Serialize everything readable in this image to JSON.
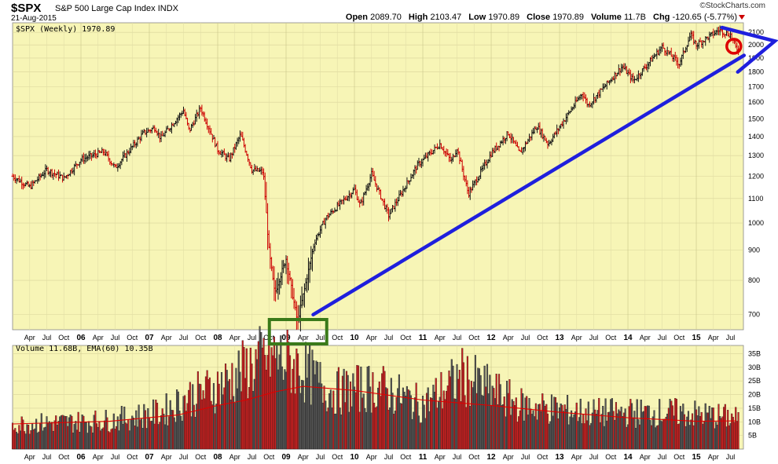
{
  "header": {
    "symbol": "$SPX",
    "description": "S&P 500 Large Cap Index",
    "exchange": "INDX",
    "date": "21-Aug-2015",
    "brand": "©StockCharts.com",
    "open_label": "Open",
    "open": "2089.70",
    "high_label": "High",
    "high": "2103.47",
    "low_label": "Low",
    "low": "1970.89",
    "close_label": "Close",
    "close": "1970.89",
    "volume_label": "Volume",
    "volume": "11.7B",
    "chg_label": "Chg",
    "chg": "-120.65 (-5.77%)"
  },
  "colors": {
    "background": "#f7f5b6",
    "up_bar": "#111111",
    "down_bar": "#cc0000",
    "trend_arrow": "#1f1fdd",
    "box": "#3a7a1a",
    "circle": "#dd0000",
    "ema_line": "#dd0000"
  },
  "chart_data": [
    {
      "type": "bar",
      "subtype": "ohlc",
      "legend": "$SPX (Weekly) 1970.89",
      "scale": "log",
      "ylim": [
        660,
        2180
      ],
      "y_ticks": [
        700,
        800,
        900,
        1000,
        1100,
        1200,
        1300,
        1400,
        1500,
        1600,
        1700,
        1800,
        1900,
        2000,
        2100
      ],
      "x_range": [
        "2005-01",
        "2015-08"
      ],
      "x_ticks": [
        "Apr",
        "Jul",
        "Oct",
        "06",
        "Apr",
        "Jul",
        "Oct",
        "07",
        "Apr",
        "Jul",
        "Oct",
        "08",
        "Apr",
        "Jul",
        "Oct",
        "09",
        "Apr",
        "Jul",
        "Oct",
        "10",
        "Apr",
        "Jul",
        "Oct",
        "11",
        "Apr",
        "Jul",
        "Oct",
        "12",
        "Apr",
        "Jul",
        "Oct",
        "13",
        "Apr",
        "Jul",
        "Oct",
        "14",
        "Apr",
        "Jul",
        "Oct",
        "15",
        "Apr",
        "Jul"
      ],
      "x_tick_dates": [
        2005.25,
        2005.5,
        2005.75,
        2006,
        2006.25,
        2006.5,
        2006.75,
        2007,
        2007.25,
        2007.5,
        2007.75,
        2008,
        2008.25,
        2008.5,
        2008.75,
        2009,
        2009.25,
        2009.5,
        2009.75,
        2010,
        2010.25,
        2010.5,
        2010.75,
        2011,
        2011.25,
        2011.5,
        2011.75,
        2012,
        2012.25,
        2012.5,
        2012.75,
        2013,
        2013.25,
        2013.5,
        2013.75,
        2014,
        2014.25,
        2014.5,
        2014.75,
        2015,
        2015.25,
        2015.5
      ],
      "x_year_ticks": [
        "06",
        "07",
        "08",
        "09",
        "10",
        "11",
        "12",
        "13",
        "14",
        "15"
      ],
      "series_points": [
        {
          "x": "2005-01",
          "y": 1200
        },
        {
          "x": "2005-04",
          "y": 1150
        },
        {
          "x": "2005-07",
          "y": 1230
        },
        {
          "x": "2005-10",
          "y": 1190
        },
        {
          "x": "2006-01",
          "y": 1280
        },
        {
          "x": "2006-05",
          "y": 1320
        },
        {
          "x": "2006-07",
          "y": 1240
        },
        {
          "x": "2006-12",
          "y": 1420
        },
        {
          "x": "2007-02",
          "y": 1450
        },
        {
          "x": "2007-03",
          "y": 1390
        },
        {
          "x": "2007-07",
          "y": 1550
        },
        {
          "x": "2007-08",
          "y": 1430
        },
        {
          "x": "2007-10",
          "y": 1565
        },
        {
          "x": "2008-01",
          "y": 1330
        },
        {
          "x": "2008-03",
          "y": 1280
        },
        {
          "x": "2008-05",
          "y": 1410
        },
        {
          "x": "2008-07",
          "y": 1230
        },
        {
          "x": "2008-09",
          "y": 1220
        },
        {
          "x": "2008-10",
          "y": 900
        },
        {
          "x": "2008-11",
          "y": 760
        },
        {
          "x": "2009-01",
          "y": 870
        },
        {
          "x": "2009-03",
          "y": 680
        },
        {
          "x": "2009-06",
          "y": 930
        },
        {
          "x": "2009-08",
          "y": 1020
        },
        {
          "x": "2010-01",
          "y": 1140
        },
        {
          "x": "2010-02",
          "y": 1070
        },
        {
          "x": "2010-04",
          "y": 1210
        },
        {
          "x": "2010-07",
          "y": 1030
        },
        {
          "x": "2010-12",
          "y": 1250
        },
        {
          "x": "2011-04",
          "y": 1360
        },
        {
          "x": "2011-06",
          "y": 1270
        },
        {
          "x": "2011-07",
          "y": 1340
        },
        {
          "x": "2011-09",
          "y": 1120
        },
        {
          "x": "2012-01",
          "y": 1310
        },
        {
          "x": "2012-04",
          "y": 1420
        },
        {
          "x": "2012-06",
          "y": 1310
        },
        {
          "x": "2012-09",
          "y": 1460
        },
        {
          "x": "2012-11",
          "y": 1360
        },
        {
          "x": "2013-05",
          "y": 1660
        },
        {
          "x": "2013-06",
          "y": 1580
        },
        {
          "x": "2013-12",
          "y": 1840
        },
        {
          "x": "2014-02",
          "y": 1740
        },
        {
          "x": "2014-07",
          "y": 1985
        },
        {
          "x": "2014-10",
          "y": 1860
        },
        {
          "x": "2014-12",
          "y": 2080
        },
        {
          "x": "2015-01",
          "y": 2000
        },
        {
          "x": "2015-05",
          "y": 2120
        },
        {
          "x": "2015-07",
          "y": 2080
        },
        {
          "x": "2015-08",
          "y": 1970.89
        }
      ]
    },
    {
      "type": "bar",
      "subtype": "volume",
      "legend": "Volume 11.68B, EMA(60) 10.35B",
      "unit": "B",
      "ylim": [
        0,
        38
      ],
      "y_tick_values": [
        5,
        10,
        15,
        20,
        25,
        30,
        35
      ],
      "y_ticks": [
        "5B",
        "10B",
        "15B",
        "20B",
        "25B",
        "30B",
        "35B"
      ],
      "ema_points": [
        {
          "x": "2005-01",
          "y": 9.2
        },
        {
          "x": "2006-06",
          "y": 10.2
        },
        {
          "x": "2007-06",
          "y": 12.5
        },
        {
          "x": "2008-01",
          "y": 16
        },
        {
          "x": "2008-06",
          "y": 18
        },
        {
          "x": "2008-11",
          "y": 21
        },
        {
          "x": "2009-04",
          "y": 23
        },
        {
          "x": "2010-01",
          "y": 21.5
        },
        {
          "x": "2011-01",
          "y": 18
        },
        {
          "x": "2012-01",
          "y": 16
        },
        {
          "x": "2013-01",
          "y": 13.5
        },
        {
          "x": "2014-01",
          "y": 11.5
        },
        {
          "x": "2015-01",
          "y": 10.2
        },
        {
          "x": "2015-08",
          "y": 10.35
        }
      ],
      "volume_profile": [
        {
          "x": "2005-01",
          "y": 9.5
        },
        {
          "x": "2006-06",
          "y": 11
        },
        {
          "x": "2007-03",
          "y": 14
        },
        {
          "x": "2007-08",
          "y": 20
        },
        {
          "x": "2008-01",
          "y": 24
        },
        {
          "x": "2008-10",
          "y": 36
        },
        {
          "x": "2009-03",
          "y": 32
        },
        {
          "x": "2009-09",
          "y": 22
        },
        {
          "x": "2010-05",
          "y": 24
        },
        {
          "x": "2011-01",
          "y": 17
        },
        {
          "x": "2011-08",
          "y": 28
        },
        {
          "x": "2012-06",
          "y": 17
        },
        {
          "x": "2013-06",
          "y": 14
        },
        {
          "x": "2014-10",
          "y": 14
        },
        {
          "x": "2015-08",
          "y": 12
        }
      ]
    }
  ]
}
